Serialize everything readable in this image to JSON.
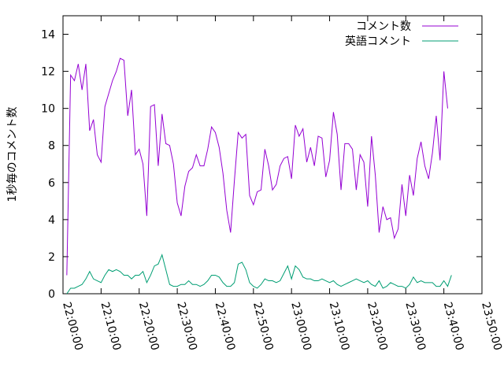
{
  "chart_data": {
    "type": "line",
    "ylabel": "1秒毎のコメント数",
    "xlabel": "",
    "ylim": [
      0,
      15
    ],
    "yticks": [
      0,
      2,
      4,
      6,
      8,
      10,
      12,
      14
    ],
    "xlim_minutes": [
      0,
      110
    ],
    "xtick_labels": [
      "22:00:00",
      "22:10:00",
      "22:20:00",
      "22:30:00",
      "22:40:00",
      "22:50:00",
      "23:00:00",
      "23:10:00",
      "23:20:00",
      "23:30:00",
      "23:40:00",
      "23:50:00"
    ],
    "legend_position": "top-right",
    "grid": false,
    "series": [
      {
        "name": "コメント数",
        "color": "#9400d3",
        "x_step_minutes": 1,
        "x_start_minutes": 1,
        "values": [
          1.0,
          11.8,
          11.5,
          12.4,
          11.0,
          12.4,
          8.8,
          9.4,
          7.5,
          7.1,
          10.1,
          10.8,
          11.5,
          12.0,
          12.7,
          12.6,
          9.6,
          11.0,
          7.5,
          7.8,
          7.0,
          4.2,
          10.1,
          10.2,
          6.9,
          9.7,
          8.1,
          8.0,
          7.0,
          4.9,
          4.2,
          5.8,
          6.6,
          6.8,
          7.5,
          6.9,
          6.9,
          7.8,
          9.0,
          8.7,
          7.9,
          6.5,
          4.5,
          3.3,
          6.1,
          8.7,
          8.4,
          8.6,
          5.3,
          4.8,
          5.5,
          5.6,
          7.8,
          6.9,
          5.6,
          5.9,
          6.9,
          7.3,
          7.4,
          6.2,
          9.1,
          8.5,
          8.9,
          7.1,
          7.9,
          6.9,
          8.5,
          8.4,
          6.3,
          7.2,
          9.8,
          8.6,
          5.6,
          8.1,
          8.1,
          7.8,
          5.6,
          7.5,
          7.1,
          4.7,
          8.5,
          6.4,
          3.3,
          4.7,
          4.0,
          4.1,
          3.0,
          3.5,
          5.9,
          4.2,
          6.4,
          5.3,
          7.3,
          8.2,
          6.9,
          6.2,
          7.6,
          9.6,
          7.2,
          12.0,
          10.0
        ]
      },
      {
        "name": "英語コメント",
        "color": "#009e73",
        "x_step_minutes": 1,
        "x_start_minutes": 1,
        "values": [
          0.0,
          0.3,
          0.3,
          0.4,
          0.5,
          0.8,
          1.2,
          0.8,
          0.7,
          0.6,
          1.0,
          1.3,
          1.2,
          1.3,
          1.2,
          1.0,
          1.0,
          0.8,
          1.0,
          1.0,
          1.2,
          0.6,
          1.0,
          1.5,
          1.6,
          2.1,
          1.3,
          0.5,
          0.4,
          0.4,
          0.5,
          0.5,
          0.7,
          0.5,
          0.5,
          0.4,
          0.5,
          0.7,
          1.0,
          1.0,
          0.9,
          0.6,
          0.4,
          0.4,
          0.6,
          1.6,
          1.7,
          1.3,
          0.6,
          0.4,
          0.3,
          0.5,
          0.8,
          0.7,
          0.7,
          0.6,
          0.7,
          1.1,
          1.5,
          0.8,
          1.5,
          1.3,
          0.9,
          0.8,
          0.8,
          0.7,
          0.7,
          0.8,
          0.7,
          0.6,
          0.7,
          0.5,
          0.4,
          0.5,
          0.6,
          0.7,
          0.8,
          0.7,
          0.6,
          0.7,
          0.5,
          0.4,
          0.7,
          0.3,
          0.4,
          0.6,
          0.5,
          0.4,
          0.4,
          0.3,
          0.5,
          0.9,
          0.6,
          0.7,
          0.6,
          0.6,
          0.6,
          0.4,
          0.4,
          0.7,
          0.4,
          1.0
        ]
      }
    ]
  }
}
